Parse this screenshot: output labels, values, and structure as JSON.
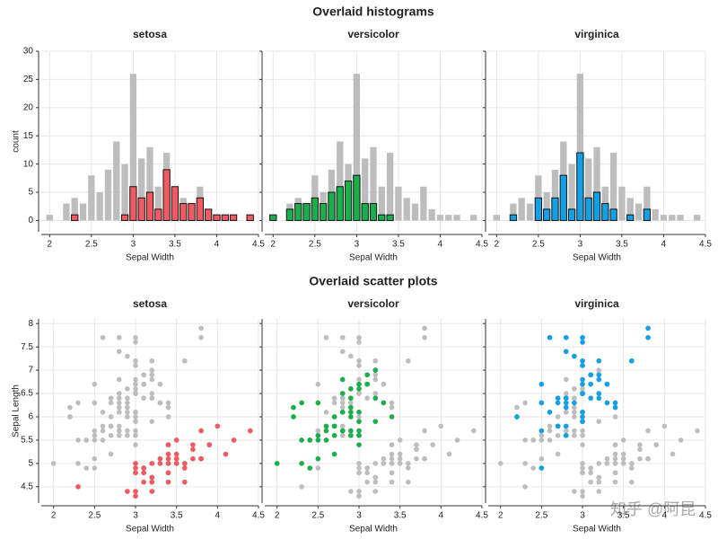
{
  "chart_data": [
    {
      "type": "histogram",
      "title": "Overlaid histograms",
      "xlabel": "Sepal Width",
      "ylabel": "count",
      "bins": [
        1.95,
        2.05,
        2.15,
        2.25,
        2.35,
        2.45,
        2.55,
        2.65,
        2.75,
        2.85,
        2.95,
        3.05,
        3.15,
        3.25,
        3.35,
        3.45,
        3.55,
        3.65,
        3.75,
        3.85,
        3.95,
        4.05,
        4.15,
        4.25,
        4.35,
        4.45
      ],
      "background": {
        "color": "#bdbdbd",
        "counts": [
          1,
          0,
          3,
          4,
          3,
          8,
          5,
          9,
          14,
          10,
          26,
          11,
          13,
          6,
          12,
          6,
          4,
          3,
          6,
          2,
          1,
          1,
          1,
          0,
          1
        ]
      },
      "series": [
        {
          "name": "setosa",
          "color": "#f25a63",
          "counts": [
            0,
            0,
            0,
            1,
            0,
            0,
            0,
            0,
            0,
            1,
            6,
            4,
            5,
            2,
            9,
            6,
            3,
            3,
            4,
            2,
            1,
            1,
            1,
            0,
            1
          ]
        },
        {
          "name": "versicolor",
          "color": "#1aaf4b",
          "counts": [
            1,
            0,
            2,
            3,
            3,
            4,
            3,
            5,
            6,
            7,
            8,
            3,
            3,
            1,
            1,
            0,
            0,
            0,
            0,
            0,
            0,
            0,
            0,
            0,
            0
          ]
        },
        {
          "name": "virginica",
          "color": "#14a0e6",
          "counts": [
            0,
            0,
            1,
            0,
            0,
            4,
            2,
            4,
            8,
            2,
            12,
            4,
            5,
            3,
            2,
            0,
            1,
            0,
            2,
            0,
            0,
            0,
            0,
            0,
            0
          ]
        }
      ],
      "xlim": [
        1.9,
        4.5
      ],
      "xticks": [
        2,
        2.5,
        3,
        3.5,
        4,
        4.5
      ],
      "ylim": [
        -2,
        30
      ],
      "yticks": [
        0,
        5,
        10,
        15,
        20,
        25,
        30
      ],
      "grid": true
    },
    {
      "type": "scatter",
      "title": "Overlaid scatter plots",
      "xlabel": "Sepal Width",
      "ylabel": "Sepal Length",
      "background_color": "#bdbdbd",
      "series": [
        {
          "name": "setosa",
          "color": "#f25a63",
          "x": [
            3.5,
            3.0,
            3.2,
            3.1,
            3.6,
            3.9,
            3.4,
            3.4,
            2.9,
            3.1,
            3.7,
            3.4,
            3.0,
            3.0,
            4.0,
            4.4,
            3.9,
            3.5,
            3.8,
            3.8,
            3.4,
            3.7,
            3.6,
            3.3,
            3.4,
            3.0,
            3.4,
            3.5,
            3.4,
            3.2,
            3.1,
            3.4,
            4.1,
            4.2,
            3.1,
            3.2,
            3.5,
            3.6,
            3.0,
            3.4,
            3.5,
            2.3,
            3.2,
            3.5,
            3.8,
            3.0,
            3.8,
            3.2,
            3.7,
            3.3
          ],
          "y": [
            5.1,
            4.9,
            4.7,
            4.6,
            5.0,
            5.4,
            4.6,
            5.0,
            4.4,
            4.9,
            5.4,
            4.8,
            4.8,
            4.3,
            5.8,
            5.7,
            5.4,
            5.1,
            5.7,
            5.1,
            5.4,
            5.1,
            4.6,
            5.1,
            4.8,
            5.0,
            5.0,
            5.2,
            5.2,
            4.7,
            4.8,
            5.4,
            5.2,
            5.5,
            4.9,
            5.0,
            5.5,
            4.9,
            4.4,
            5.1,
            5.0,
            4.5,
            4.4,
            5.0,
            5.1,
            4.8,
            5.1,
            4.6,
            5.3,
            5.0
          ]
        },
        {
          "name": "versicolor",
          "color": "#1aaf4b",
          "x": [
            3.2,
            3.2,
            3.1,
            2.3,
            2.8,
            2.8,
            3.3,
            2.4,
            2.9,
            2.7,
            2.0,
            3.0,
            2.2,
            2.9,
            2.9,
            3.1,
            3.0,
            2.7,
            2.2,
            2.5,
            3.2,
            2.8,
            2.5,
            2.8,
            2.9,
            3.0,
            2.8,
            3.0,
            2.9,
            2.6,
            2.4,
            2.4,
            2.7,
            2.7,
            3.0,
            3.4,
            3.1,
            2.3,
            3.0,
            2.5,
            2.6,
            3.0,
            2.6,
            2.3,
            2.7,
            3.0,
            2.9,
            2.9,
            2.5,
            2.8
          ],
          "y": [
            7.0,
            6.4,
            6.9,
            5.5,
            6.5,
            5.7,
            6.3,
            4.9,
            6.6,
            5.2,
            5.0,
            5.9,
            6.0,
            6.1,
            5.6,
            6.7,
            5.6,
            5.8,
            6.2,
            5.6,
            5.9,
            6.1,
            6.3,
            6.1,
            6.4,
            6.6,
            6.8,
            6.7,
            6.0,
            5.7,
            5.5,
            5.5,
            5.8,
            6.0,
            5.4,
            6.0,
            6.7,
            6.3,
            5.6,
            5.5,
            5.5,
            6.1,
            5.8,
            5.0,
            5.6,
            5.7,
            5.7,
            6.2,
            5.1,
            5.7
          ]
        },
        {
          "name": "virginica",
          "color": "#14a0e6",
          "x": [
            3.3,
            2.7,
            3.0,
            2.9,
            3.0,
            3.0,
            2.5,
            2.9,
            2.5,
            3.6,
            3.2,
            2.7,
            3.0,
            2.5,
            2.8,
            3.2,
            3.0,
            3.8,
            2.6,
            2.2,
            3.2,
            2.8,
            2.8,
            2.7,
            3.3,
            3.2,
            2.8,
            3.0,
            2.8,
            3.0,
            2.8,
            3.8,
            2.8,
            2.8,
            2.6,
            3.0,
            3.4,
            3.1,
            3.0,
            3.1,
            3.1,
            3.1,
            2.7,
            3.2,
            3.3,
            3.0,
            2.5,
            3.0,
            3.4,
            3.0
          ],
          "y": [
            6.3,
            5.8,
            7.1,
            6.3,
            6.5,
            7.6,
            4.9,
            7.3,
            6.7,
            7.2,
            6.5,
            6.4,
            6.8,
            5.7,
            5.8,
            6.4,
            6.5,
            7.7,
            7.7,
            6.0,
            6.9,
            5.6,
            7.7,
            6.3,
            6.7,
            7.2,
            6.2,
            6.1,
            6.4,
            7.2,
            7.4,
            7.9,
            6.4,
            6.3,
            6.1,
            7.7,
            6.3,
            6.4,
            6.0,
            6.9,
            6.7,
            6.9,
            5.8,
            6.8,
            6.7,
            6.7,
            6.3,
            6.5,
            6.2,
            5.9
          ]
        }
      ],
      "xlim": [
        1.85,
        4.5
      ],
      "xticks": [
        2,
        2.5,
        3,
        3.5,
        4,
        4.5
      ],
      "ylim": [
        4.15,
        8.1
      ],
      "yticks": [
        4.5,
        5,
        5.5,
        6,
        6.5,
        7,
        7.5,
        8
      ],
      "grid": true
    }
  ],
  "watermark": "知乎 @阿昆"
}
